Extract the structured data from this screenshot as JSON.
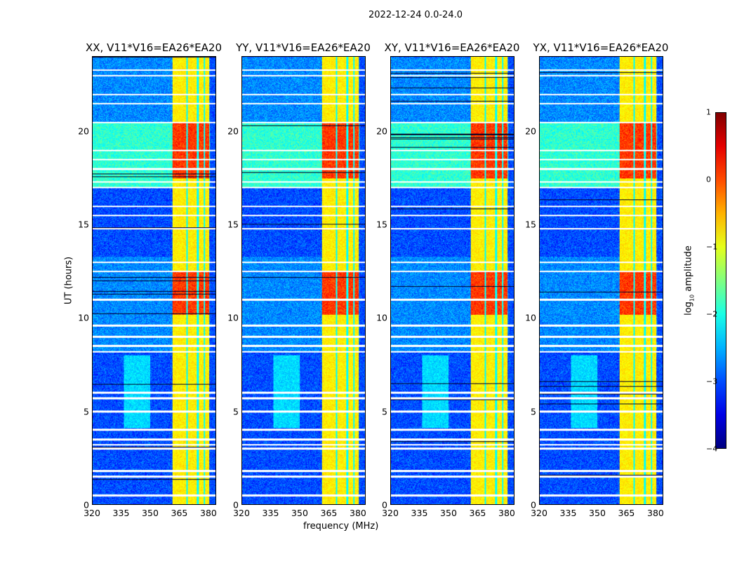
{
  "chart_data": {
    "type": "heatmap",
    "title": "2022-12-24 0.0-24.0",
    "xlabel": "frequency (MHz)",
    "ylabel": "UT (hours)",
    "xlim": [
      320,
      384
    ],
    "ylim": [
      0,
      24
    ],
    "xticks": [
      "320",
      "335",
      "350",
      "365",
      "380"
    ],
    "xtick_values": [
      320,
      335,
      350,
      365,
      380
    ],
    "yticks": [
      "0",
      "5",
      "10",
      "15",
      "20"
    ],
    "ytick_values": [
      0,
      5,
      10,
      15,
      20
    ],
    "colorbar": {
      "label": "log10 amplitude",
      "label_main": "log",
      "label_sub": "10",
      "label_rest": " amplitude",
      "range": [
        -4,
        1
      ],
      "ticks": [
        "−4",
        "−3",
        "−2",
        "−1",
        "0",
        "1"
      ],
      "tick_values": [
        -4,
        -3,
        -2,
        -1,
        0,
        1
      ],
      "colormap": "jet"
    },
    "panels": [
      {
        "title": "XX, V11*V16=EA26*EA20",
        "scale": 1.0
      },
      {
        "title": "YY, V11*V16=EA26*EA20",
        "scale": 1.05
      },
      {
        "title": "XY, V11*V16=EA26*EA20",
        "scale": 0.9
      },
      {
        "title": "YX, V11*V16=EA26*EA20",
        "scale": 0.9
      }
    ],
    "background_level": -3.0,
    "time_segments": [
      {
        "from": 0,
        "to": 8.2,
        "level": -3.0
      },
      {
        "from": 8.2,
        "to": 13.3,
        "level": -2.7
      },
      {
        "from": 13.3,
        "to": 17.0,
        "level": -3.0
      },
      {
        "from": 17.0,
        "to": 20.5,
        "level": -1.9
      },
      {
        "from": 20.5,
        "to": 24,
        "level": -2.7
      }
    ],
    "rfi_band": {
      "from_mhz": 361.5,
      "to_mhz": 380.5,
      "level": -0.8,
      "strong_hours": [
        [
          10.2,
          12.5
        ],
        [
          17.5,
          20.5
        ]
      ],
      "strong_level": 0.1
    },
    "broad_feature": {
      "from_mhz": 336,
      "to_mhz": 350,
      "hours": [
        4.1,
        8.0
      ],
      "level": -2.3
    },
    "flagged_hours": [
      0.5,
      1.5,
      1.8,
      3.0,
      3.2,
      3.5,
      4.0,
      5.0,
      5.7,
      6.0,
      8.2,
      8.5,
      9.0,
      9.6,
      11.0,
      12.5,
      13.0,
      14.8,
      15.5,
      16.0,
      17.0,
      17.3,
      18.0,
      18.5,
      19.0,
      20.5,
      21.5,
      22.0,
      23.0,
      23.3
    ]
  }
}
